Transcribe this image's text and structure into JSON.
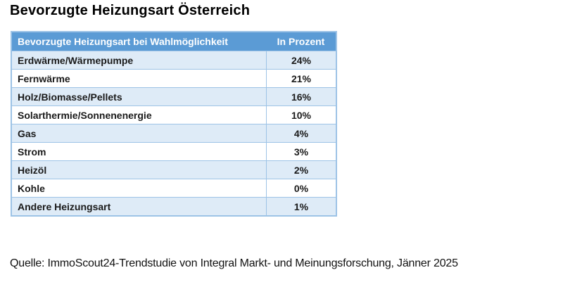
{
  "page": {
    "title": "Bevorzugte Heizungsart Österreich",
    "source_note": "Quelle: ImmoScout24-Trendstudie von Integral Markt- und Meinungsforschung, Jänner 2025"
  },
  "table": {
    "headers": [
      "Bevorzugte Heizungsart bei Wahlmöglichkeit",
      "In Prozent"
    ],
    "rows": [
      [
        "Erdwärme/Wärmepumpe",
        "24%"
      ],
      [
        "Fernwärme",
        "21%"
      ],
      [
        "Holz/Biomasse/Pellets",
        "16%"
      ],
      [
        "Solarthermie/Sonnenenergie",
        "10%"
      ],
      [
        "Gas",
        "4%"
      ],
      [
        "Strom",
        "3%"
      ],
      [
        "Heizöl",
        "2%"
      ],
      [
        "Kohle",
        "0%"
      ],
      [
        "Andere Heizungsart",
        "1%"
      ]
    ]
  },
  "colors": {
    "header_bg": "#5B9BD5",
    "header_text": "#FFFFFF",
    "band_bg": "#DEEBF7",
    "border": "#9DC3E6",
    "body_text": "#1A1A1A"
  },
  "chart_data": {
    "type": "table",
    "title": "Bevorzugte Heizungsart Österreich",
    "columns": [
      "Bevorzugte Heizungsart bei Wahlmöglichkeit",
      "In Prozent"
    ],
    "categories": [
      "Erdwärme/Wärmepumpe",
      "Fernwärme",
      "Holz/Biomasse/Pellets",
      "Solarthermie/Sonnenenergie",
      "Gas",
      "Strom",
      "Heizöl",
      "Kohle",
      "Andere Heizungsart"
    ],
    "values": [
      24,
      21,
      16,
      10,
      4,
      3,
      2,
      0,
      1
    ],
    "unit": "%",
    "source": "Quelle: ImmoScout24-Trendstudie von Integral Markt- und Meinungsforschung, Jänner 2025"
  }
}
